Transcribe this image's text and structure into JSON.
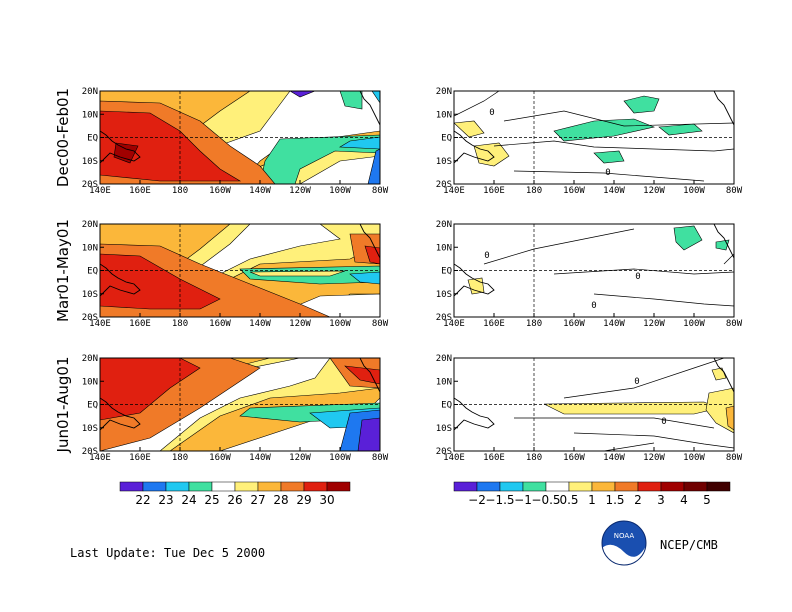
{
  "chart_data": {
    "type": "heatmap",
    "panels": [
      {
        "row": "Dec00-Feb01",
        "kind": "sst"
      },
      {
        "row": "Dec00-Feb01",
        "kind": "anomaly"
      },
      {
        "row": "Mar01-May01",
        "kind": "sst"
      },
      {
        "row": "Mar01-May01",
        "kind": "anomaly"
      },
      {
        "row": "Jun01-Aug01",
        "kind": "sst"
      },
      {
        "row": "Jun01-Aug01",
        "kind": "anomaly"
      }
    ],
    "row_labels": [
      "Dec00-Feb01",
      "Mar01-May01",
      "Jun01-Aug01"
    ],
    "x_ticks": [
      "140E",
      "160E",
      "180",
      "160W",
      "140W",
      "120W",
      "100W",
      "80W"
    ],
    "y_ticks": [
      "20N",
      "10N",
      "EQ",
      "10S",
      "20S"
    ],
    "contour_labels": {
      "r0_anom": [
        "0",
        "0"
      ],
      "r1_anom": [
        "0",
        "0",
        "0"
      ],
      "r2_anom": [
        "0",
        "0"
      ]
    },
    "colorbar_sst": {
      "labels": [
        "22",
        "23",
        "24",
        "25",
        "26",
        "27",
        "28",
        "29",
        "30"
      ],
      "colors": [
        "#5a20d8",
        "#1e78f0",
        "#20c8f0",
        "#40e0a0",
        "#ffffff",
        "#fff07a",
        "#fbb73a",
        "#f07a28",
        "#e02010",
        "#a00000"
      ]
    },
    "colorbar_anom": {
      "labels": [
        "−2",
        "−1.5",
        "−1",
        "−0.5",
        "0.5",
        "1",
        "1.5",
        "2",
        "3",
        "4",
        "5"
      ],
      "colors": [
        "#5a20d8",
        "#1e78f0",
        "#20c8f0",
        "#40e0a0",
        "#ffffff",
        "#fff07a",
        "#fbb73a",
        "#f07a28",
        "#e02010",
        "#a00000",
        "#700000",
        "#400000"
      ]
    }
  },
  "footer": {
    "last_update": "Last Update:  Tue Dec 5 2000",
    "credit": "NCEP/CMB",
    "logo_text": "NOAA"
  }
}
